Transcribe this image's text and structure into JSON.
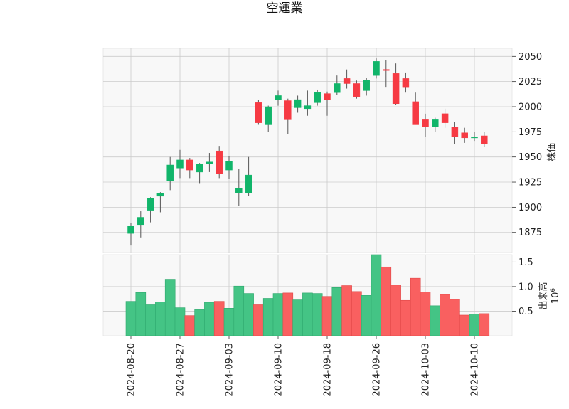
{
  "chart_data": {
    "type": "candlestick",
    "title": "空運業",
    "price_axis": {
      "label": "株価",
      "ticks": [
        1875,
        1900,
        1925,
        1950,
        1975,
        2000,
        2025,
        2050
      ],
      "range": [
        1855,
        2058
      ]
    },
    "volume_axis": {
      "label": "出来高",
      "exponent_label": "10",
      "exponent": "6",
      "ticks": [
        0.5,
        1.0,
        1.5
      ],
      "tick_labels": [
        "0.5",
        "1.0",
        "1.5"
      ],
      "range": [
        0,
        1.65
      ]
    },
    "x_tick_labels": [
      "2024-08-20",
      "2024-08-27",
      "2024-09-03",
      "2024-09-10",
      "2024-09-18",
      "2024-09-26",
      "2024-10-03",
      "2024-10-10"
    ],
    "x_tick_indices": [
      0,
      5,
      10,
      15,
      20,
      25,
      30,
      35
    ],
    "colors": {
      "up": "#11b56a",
      "down": "#f63a43",
      "vol_up": "#44c485",
      "vol_down": "#f96060",
      "grid": "#cccccc",
      "plot_bg": "#f8f8f8"
    },
    "candles": [
      {
        "o": 1874,
        "h": 1884,
        "l": 1862,
        "c": 1881,
        "v": 0.7
      },
      {
        "o": 1882,
        "h": 1896,
        "l": 1870,
        "c": 1890,
        "v": 0.88
      },
      {
        "o": 1897,
        "h": 1910,
        "l": 1885,
        "c": 1909,
        "v": 0.63
      },
      {
        "o": 1911,
        "h": 1915,
        "l": 1895,
        "c": 1914,
        "v": 0.69
      },
      {
        "o": 1926,
        "h": 1950,
        "l": 1917,
        "c": 1942,
        "v": 1.15
      },
      {
        "o": 1939,
        "h": 1957,
        "l": 1929,
        "c": 1947,
        "v": 0.57
      },
      {
        "o": 1947,
        "h": 1949,
        "l": 1929,
        "c": 1937,
        "v": 0.41
      },
      {
        "o": 1935,
        "h": 1944,
        "l": 1924,
        "c": 1943,
        "v": 0.53
      },
      {
        "o": 1943,
        "h": 1954,
        "l": 1935,
        "c": 1945,
        "v": 0.68
      },
      {
        "o": 1956,
        "h": 1961,
        "l": 1929,
        "c": 1933,
        "v": 0.7
      },
      {
        "o": 1937,
        "h": 1951,
        "l": 1928,
        "c": 1946,
        "v": 0.56
      },
      {
        "o": 1914,
        "h": 1938,
        "l": 1901,
        "c": 1919,
        "v": 1.01
      },
      {
        "o": 1914,
        "h": 1950,
        "l": 1911,
        "c": 1932,
        "v": 0.86
      },
      {
        "o": 2004,
        "h": 2007,
        "l": 1982,
        "c": 1984,
        "v": 0.63
      },
      {
        "o": 1982,
        "h": 2001,
        "l": 1975,
        "c": 2000,
        "v": 0.76
      },
      {
        "o": 2007,
        "h": 2016,
        "l": 2001,
        "c": 2011,
        "v": 0.86
      },
      {
        "o": 2006,
        "h": 2008,
        "l": 1973,
        "c": 1987,
        "v": 0.87
      },
      {
        "o": 1999,
        "h": 2011,
        "l": 1994,
        "c": 2007,
        "v": 0.73
      },
      {
        "o": 1998,
        "h": 2016,
        "l": 1991,
        "c": 2001,
        "v": 0.87
      },
      {
        "o": 2004,
        "h": 2017,
        "l": 2001,
        "c": 2014,
        "v": 0.86
      },
      {
        "o": 2013,
        "h": 2015,
        "l": 1991,
        "c": 2007,
        "v": 0.8
      },
      {
        "o": 2014,
        "h": 2031,
        "l": 2012,
        "c": 2023,
        "v": 0.98
      },
      {
        "o": 2028,
        "h": 2037,
        "l": 2018,
        "c": 2023,
        "v": 1.02
      },
      {
        "o": 2023,
        "h": 2026,
        "l": 2008,
        "c": 2010,
        "v": 0.9
      },
      {
        "o": 2016,
        "h": 2029,
        "l": 2011,
        "c": 2026,
        "v": 0.82
      },
      {
        "o": 2031,
        "h": 2048,
        "l": 2028,
        "c": 2045,
        "v": 1.65
      },
      {
        "o": 2037,
        "h": 2046,
        "l": 2019,
        "c": 2036,
        "v": 1.4
      },
      {
        "o": 2033,
        "h": 2043,
        "l": 2002,
        "c": 2003,
        "v": 1.03
      },
      {
        "o": 2028,
        "h": 2034,
        "l": 2014,
        "c": 2019,
        "v": 0.72
      },
      {
        "o": 2005,
        "h": 2014,
        "l": 1982,
        "c": 1982,
        "v": 1.17
      },
      {
        "o": 1987,
        "h": 1993,
        "l": 1970,
        "c": 1980,
        "v": 0.89
      },
      {
        "o": 1980,
        "h": 1989,
        "l": 1975,
        "c": 1987,
        "v": 0.61
      },
      {
        "o": 1993,
        "h": 1998,
        "l": 1979,
        "c": 1984,
        "v": 0.84
      },
      {
        "o": 1980,
        "h": 1985,
        "l": 1963,
        "c": 1970,
        "v": 0.74
      },
      {
        "o": 1974,
        "h": 1979,
        "l": 1964,
        "c": 1969,
        "v": 0.42
      },
      {
        "o": 1970,
        "h": 1975,
        "l": 1966,
        "c": 1970,
        "v": 0.44
      },
      {
        "o": 1971,
        "h": 1975,
        "l": 1960,
        "c": 1963,
        "v": 0.45
      }
    ]
  }
}
